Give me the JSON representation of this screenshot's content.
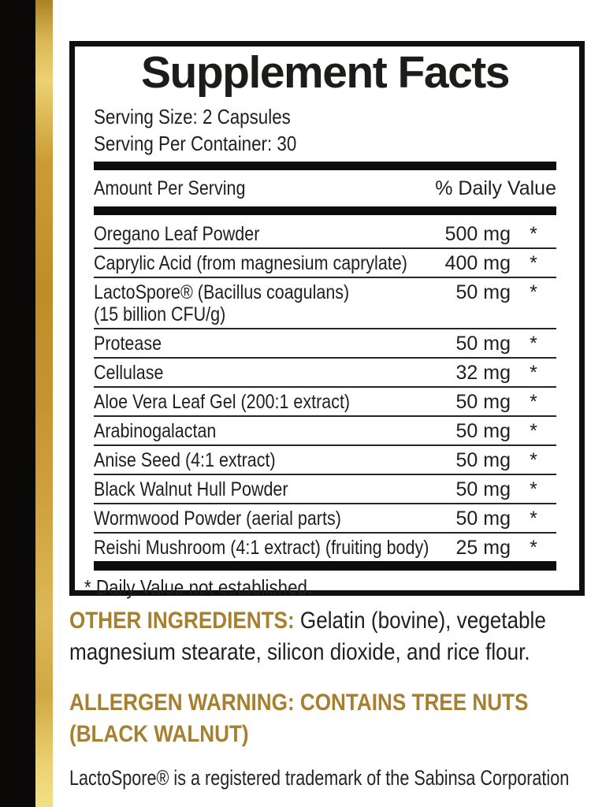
{
  "panel": {
    "title": "Supplement Facts",
    "serving_size": "Serving Size: 2 Capsules",
    "servings_per_container": "Serving Per Container: 30",
    "header": {
      "amount_label": "Amount Per Serving",
      "daily_value_label": "% Daily Value"
    },
    "rows": [
      {
        "name": "Oregano Leaf Powder",
        "name2": "",
        "amount": "500 mg",
        "dv": "*"
      },
      {
        "name": "Caprylic Acid (from magnesium caprylate)",
        "name2": "",
        "amount": "400 mg",
        "dv": "*"
      },
      {
        "name": "LactoSpore® (Bacillus coagulans)",
        "name2": "(15 billion CFU/g)",
        "amount": "50 mg",
        "dv": "*"
      },
      {
        "name": "Protease",
        "name2": "",
        "amount": "50 mg",
        "dv": "*"
      },
      {
        "name": "Cellulase",
        "name2": "",
        "amount": "32 mg",
        "dv": "*"
      },
      {
        "name": "Aloe Vera Leaf Gel (200:1 extract)",
        "name2": "",
        "amount": "50 mg",
        "dv": "*"
      },
      {
        "name": "Arabinogalactan",
        "name2": "",
        "amount": "50 mg",
        "dv": "*"
      },
      {
        "name": "Anise Seed (4:1 extract)",
        "name2": "",
        "amount": "50 mg",
        "dv": "*"
      },
      {
        "name": "Black Walnut Hull Powder",
        "name2": "",
        "amount": "50 mg",
        "dv": "*"
      },
      {
        "name": "Wormwood Powder (aerial parts)",
        "name2": "",
        "amount": "50 mg",
        "dv": "*"
      },
      {
        "name": "Reishi Mushroom (4:1 extract) (fruiting body)",
        "name2": "",
        "amount": "25 mg",
        "dv": "*"
      }
    ],
    "footnote": "* Daily Value not established."
  },
  "other_ingredients": {
    "label": "OTHER INGREDIENTS:",
    "text": " Gelatin (bovine), vegetable magnesium stearate, silicon dioxide, and rice flour."
  },
  "allergen_warning": "ALLERGEN WARNING: CONTAINS TREE NUTS (BLACK WALNUT)",
  "trademark_note": "LactoSpore® is a registered trademark of the Sabinsa Corporation",
  "colors": {
    "accent_gold": "#a6802f",
    "side_bar_black": "#0b0a08",
    "gold_stripe_light": "#f2df87",
    "gold_stripe_dark": "#ab8124",
    "text": "#1f1f1d"
  }
}
